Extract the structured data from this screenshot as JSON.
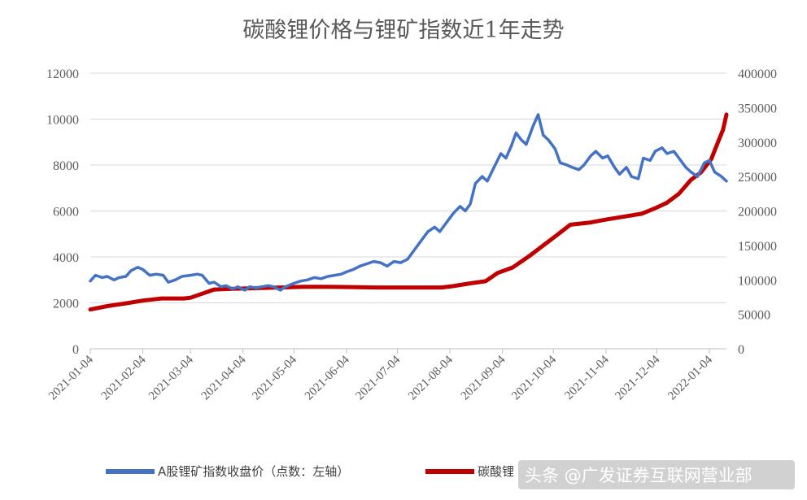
{
  "chart_data": {
    "type": "line",
    "title": "碳酸锂价格与锂矿指数近1年走势",
    "x_tick_labels": [
      "2021-01-04",
      "2021-02-04",
      "2021-03-04",
      "2021-04-04",
      "2021-05-04",
      "2021-06-04",
      "2021-07-04",
      "2021-08-04",
      "2021-09-04",
      "2021-10-04",
      "2021-11-04",
      "2021-12-04",
      "2022-01-04"
    ],
    "x_range": [
      "2021-01-04",
      "2022-01-14"
    ],
    "y_left": {
      "min": 0,
      "max": 12000,
      "ticks": [
        "0",
        "2000",
        "4000",
        "6000",
        "8000",
        "10000",
        "12000"
      ]
    },
    "y_right": {
      "min": 0,
      "max": 400000,
      "ticks": [
        "0",
        "50000",
        "100000",
        "150000",
        "200000",
        "250000",
        "300000",
        "350000",
        "400000"
      ]
    },
    "grid": "horizontal",
    "legend_position": "bottom",
    "series": [
      {
        "name": "A股锂矿指数收盘价（点数：左轴）",
        "axis": "left",
        "color": "#4472c4",
        "points": [
          [
            "2021-01-04",
            2950
          ],
          [
            "2021-01-07",
            3200
          ],
          [
            "2021-01-11",
            3100
          ],
          [
            "2021-01-14",
            3150
          ],
          [
            "2021-01-18",
            3000
          ],
          [
            "2021-01-21",
            3100
          ],
          [
            "2021-01-25",
            3150
          ],
          [
            "2021-01-28",
            3400
          ],
          [
            "2021-02-01",
            3550
          ],
          [
            "2021-02-04",
            3450
          ],
          [
            "2021-02-08",
            3200
          ],
          [
            "2021-02-12",
            3250
          ],
          [
            "2021-02-16",
            3200
          ],
          [
            "2021-02-19",
            2900
          ],
          [
            "2021-02-23",
            3000
          ],
          [
            "2021-02-27",
            3150
          ],
          [
            "2021-03-04",
            3200
          ],
          [
            "2021-03-08",
            3250
          ],
          [
            "2021-03-11",
            3200
          ],
          [
            "2021-03-15",
            2850
          ],
          [
            "2021-03-18",
            2900
          ],
          [
            "2021-03-22",
            2700
          ],
          [
            "2021-03-25",
            2750
          ],
          [
            "2021-03-29",
            2600
          ],
          [
            "2021-04-01",
            2700
          ],
          [
            "2021-04-05",
            2550
          ],
          [
            "2021-04-08",
            2700
          ],
          [
            "2021-04-12",
            2650
          ],
          [
            "2021-04-15",
            2700
          ],
          [
            "2021-04-19",
            2750
          ],
          [
            "2021-04-22",
            2700
          ],
          [
            "2021-04-26",
            2550
          ],
          [
            "2021-04-29",
            2700
          ],
          [
            "2021-05-04",
            2850
          ],
          [
            "2021-05-08",
            2950
          ],
          [
            "2021-05-12",
            3000
          ],
          [
            "2021-05-16",
            3100
          ],
          [
            "2021-05-20",
            3050
          ],
          [
            "2021-05-24",
            3150
          ],
          [
            "2021-05-28",
            3200
          ],
          [
            "2021-06-01",
            3250
          ],
          [
            "2021-06-04",
            3350
          ],
          [
            "2021-06-08",
            3450
          ],
          [
            "2021-06-12",
            3600
          ],
          [
            "2021-06-16",
            3700
          ],
          [
            "2021-06-20",
            3800
          ],
          [
            "2021-06-24",
            3750
          ],
          [
            "2021-06-28",
            3600
          ],
          [
            "2021-07-02",
            3800
          ],
          [
            "2021-07-06",
            3750
          ],
          [
            "2021-07-10",
            3900
          ],
          [
            "2021-07-14",
            4300
          ],
          [
            "2021-07-18",
            4700
          ],
          [
            "2021-07-22",
            5100
          ],
          [
            "2021-07-26",
            5300
          ],
          [
            "2021-07-29",
            5100
          ],
          [
            "2021-08-02",
            5500
          ],
          [
            "2021-08-06",
            5900
          ],
          [
            "2021-08-10",
            6200
          ],
          [
            "2021-08-13",
            6000
          ],
          [
            "2021-08-16",
            6300
          ],
          [
            "2021-08-19",
            7200
          ],
          [
            "2021-08-23",
            7500
          ],
          [
            "2021-08-26",
            7300
          ],
          [
            "2021-08-30",
            7900
          ],
          [
            "2021-09-03",
            8500
          ],
          [
            "2021-09-06",
            8300
          ],
          [
            "2021-09-09",
            8800
          ],
          [
            "2021-09-12",
            9400
          ],
          [
            "2021-09-15",
            9100
          ],
          [
            "2021-09-18",
            8900
          ],
          [
            "2021-09-22",
            9700
          ],
          [
            "2021-09-25",
            10200
          ],
          [
            "2021-09-28",
            9300
          ],
          [
            "2021-10-01",
            9100
          ],
          [
            "2021-10-05",
            8700
          ],
          [
            "2021-10-08",
            8100
          ],
          [
            "2021-10-12",
            8000
          ],
          [
            "2021-10-15",
            7900
          ],
          [
            "2021-10-19",
            7800
          ],
          [
            "2021-10-22",
            8000
          ],
          [
            "2021-10-26",
            8400
          ],
          [
            "2021-10-29",
            8600
          ],
          [
            "2021-11-02",
            8300
          ],
          [
            "2021-11-05",
            8400
          ],
          [
            "2021-11-09",
            7900
          ],
          [
            "2021-11-12",
            7600
          ],
          [
            "2021-11-16",
            7900
          ],
          [
            "2021-11-19",
            7500
          ],
          [
            "2021-11-23",
            7400
          ],
          [
            "2021-11-26",
            8300
          ],
          [
            "2021-11-30",
            8200
          ],
          [
            "2021-12-03",
            8600
          ],
          [
            "2021-12-07",
            8750
          ],
          [
            "2021-12-10",
            8500
          ],
          [
            "2021-12-14",
            8600
          ],
          [
            "2021-12-17",
            8300
          ],
          [
            "2021-12-21",
            7900
          ],
          [
            "2021-12-24",
            7700
          ],
          [
            "2021-12-28",
            7500
          ],
          [
            "2022-01-01",
            8100
          ],
          [
            "2022-01-04",
            8200
          ],
          [
            "2022-01-07",
            7700
          ],
          [
            "2022-01-11",
            7500
          ],
          [
            "2022-01-14",
            7300
          ]
        ]
      },
      {
        "name": "碳酸锂",
        "axis": "right",
        "color": "#c00000",
        "points": [
          [
            "2021-01-04",
            57000
          ],
          [
            "2021-01-14",
            62000
          ],
          [
            "2021-01-25",
            66000
          ],
          [
            "2021-02-04",
            70000
          ],
          [
            "2021-02-15",
            73000
          ],
          [
            "2021-02-28",
            73000
          ],
          [
            "2021-03-04",
            74000
          ],
          [
            "2021-03-11",
            80000
          ],
          [
            "2021-03-18",
            86000
          ],
          [
            "2021-03-29",
            87000
          ],
          [
            "2021-04-12",
            88000
          ],
          [
            "2021-04-26",
            89000
          ],
          [
            "2021-05-10",
            90000
          ],
          [
            "2021-05-24",
            90000
          ],
          [
            "2021-06-07",
            89500
          ],
          [
            "2021-06-21",
            89000
          ],
          [
            "2021-07-05",
            89000
          ],
          [
            "2021-07-19",
            89000
          ],
          [
            "2021-07-30",
            89000
          ],
          [
            "2021-08-06",
            91000
          ],
          [
            "2021-08-16",
            95000
          ],
          [
            "2021-08-25",
            98000
          ],
          [
            "2021-09-01",
            110000
          ],
          [
            "2021-09-10",
            118000
          ],
          [
            "2021-09-20",
            135000
          ],
          [
            "2021-09-28",
            150000
          ],
          [
            "2021-10-06",
            165000
          ],
          [
            "2021-10-14",
            180000
          ],
          [
            "2021-10-25",
            183000
          ],
          [
            "2021-11-05",
            188000
          ],
          [
            "2021-11-15",
            192000
          ],
          [
            "2021-11-25",
            196000
          ],
          [
            "2021-12-03",
            204000
          ],
          [
            "2021-12-10",
            212000
          ],
          [
            "2021-12-17",
            225000
          ],
          [
            "2021-12-24",
            245000
          ],
          [
            "2021-12-30",
            256000
          ],
          [
            "2022-01-05",
            275000
          ],
          [
            "2022-01-09",
            300000
          ],
          [
            "2022-01-12",
            318000
          ],
          [
            "2022-01-14",
            340000
          ]
        ]
      }
    ],
    "legend": [
      {
        "label": "A股锂矿指数收盘价（点数：左轴）",
        "color": "#4472c4"
      },
      {
        "label": "碳酸锂",
        "color": "#c00000"
      }
    ]
  },
  "watermark": {
    "text": "头条 @广发证券互联网营业部"
  }
}
